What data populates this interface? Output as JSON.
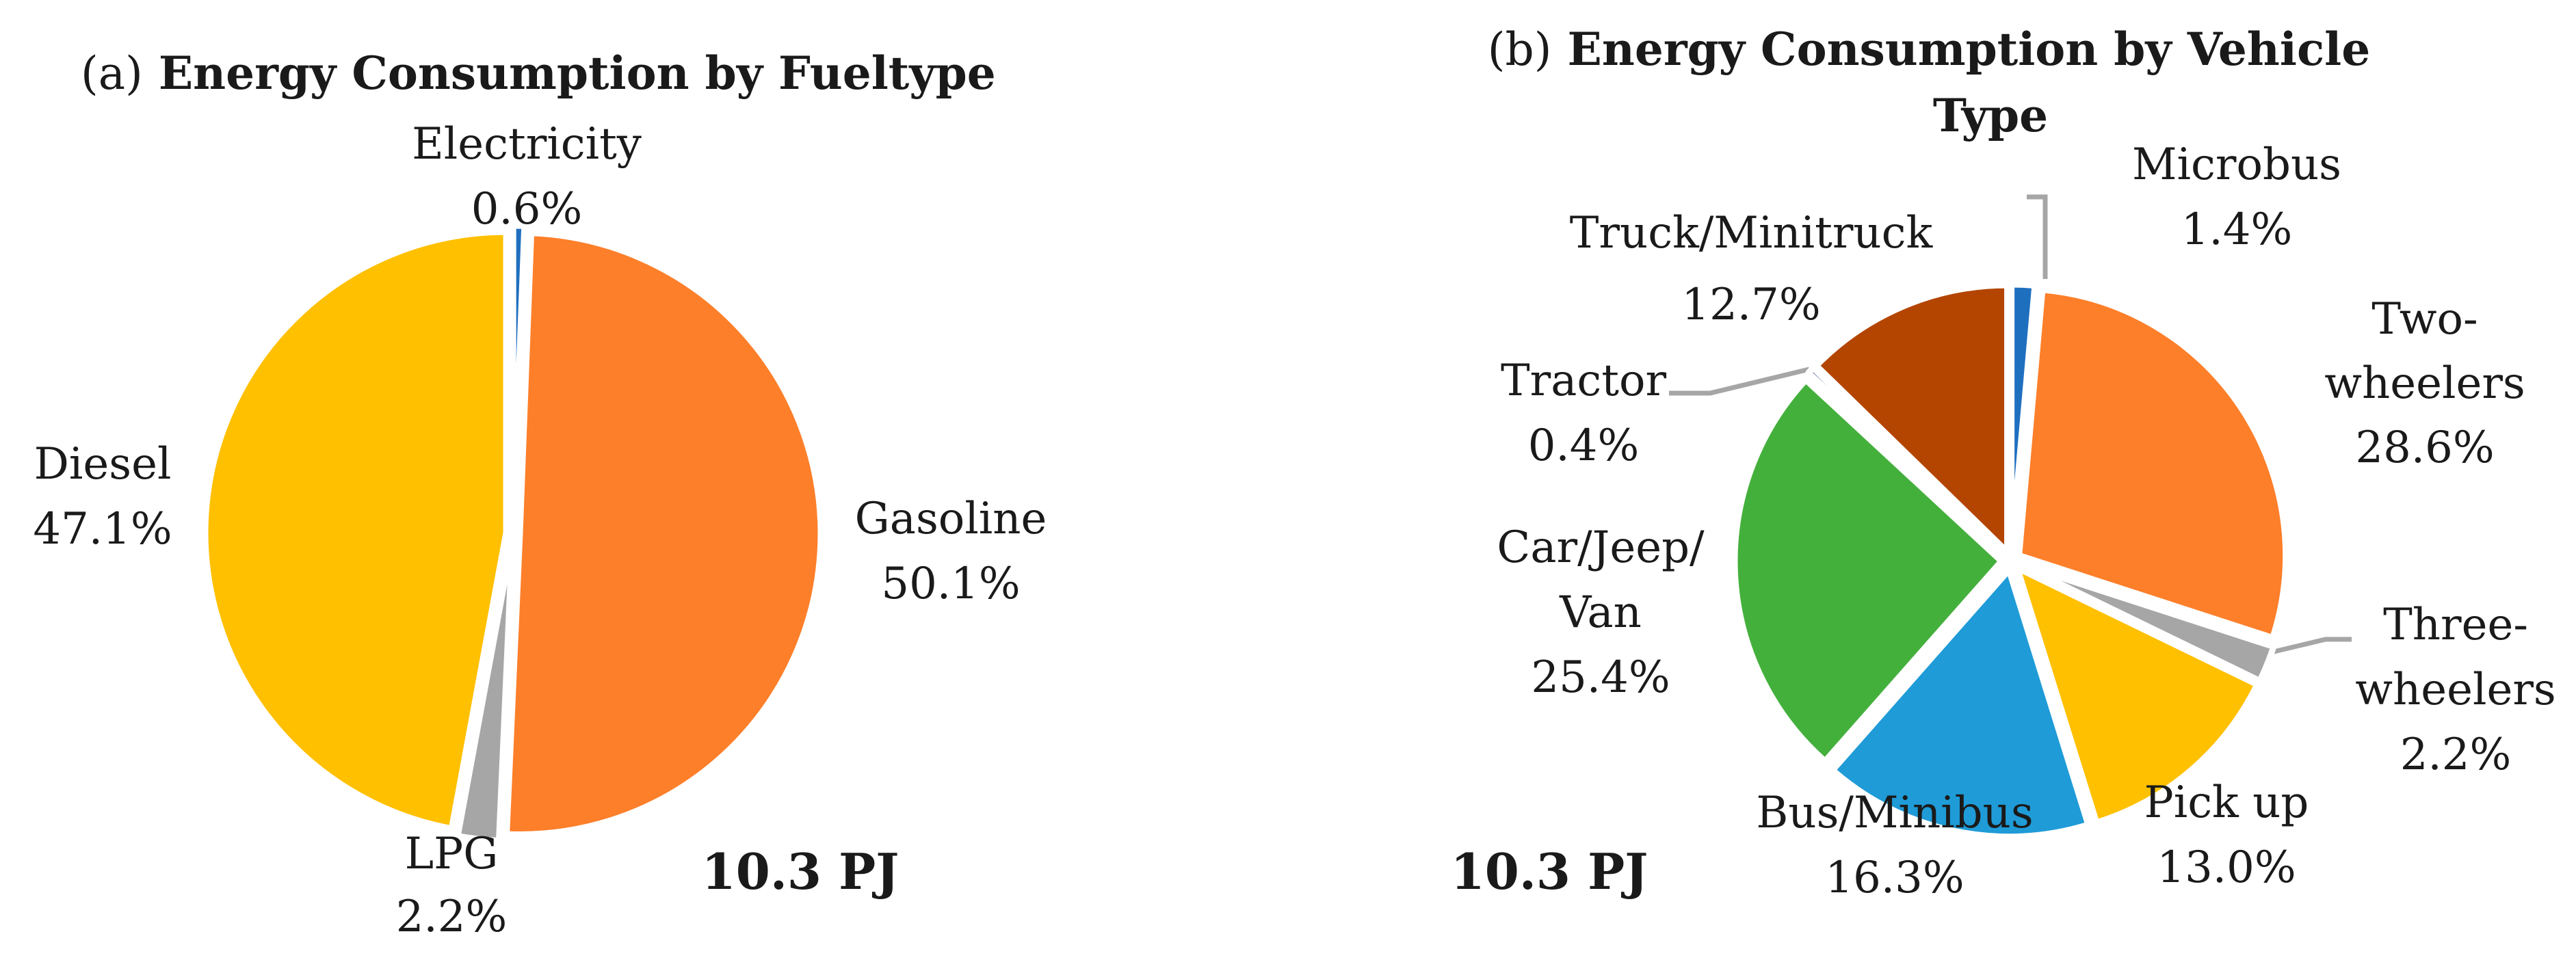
{
  "charts": [
    {
      "id": "a",
      "type": "pie",
      "title_prefix": "(a)",
      "title": "Energy Consumption by Fueltype",
      "total_label": "10.3 PJ",
      "slices": [
        {
          "name": "Electricity",
          "value": 0.6,
          "label": "0.6%",
          "color": "#1f6fbf"
        },
        {
          "name": "Gasoline",
          "value": 50.1,
          "label": "50.1%",
          "color": "#fd7f2a"
        },
        {
          "name": "LPG",
          "value": 2.2,
          "label": "2.2%",
          "color": "#a6a6a6"
        },
        {
          "name": "Diesel",
          "value": 47.1,
          "label": "47.1%",
          "color": "#ffc000"
        }
      ]
    },
    {
      "id": "b",
      "type": "pie",
      "title_prefix": "(b)",
      "title_line1": "Energy Consumption by Vehicle",
      "title_line2": "Type",
      "total_label": "10.3 PJ",
      "slices": [
        {
          "name": "Microbus",
          "value": 1.4,
          "label": "1.4%",
          "color": "#1f6fbf"
        },
        {
          "name_lines": [
            "Two-",
            "wheelers"
          ],
          "value": 28.6,
          "label": "28.6%",
          "color": "#fd7f2a"
        },
        {
          "name_lines": [
            "Three-",
            "wheelers"
          ],
          "value": 2.2,
          "label": "2.2%",
          "color": "#a6a6a6"
        },
        {
          "name": "Pick up",
          "value": 13.0,
          "label": "13.0%",
          "color": "#ffc000"
        },
        {
          "name": "Bus/Minibus",
          "value": 16.3,
          "label": "16.3%",
          "color": "#1f9bd7"
        },
        {
          "name_lines": [
            "Car/Jeep/",
            "Van"
          ],
          "value": 25.4,
          "label": "25.4%",
          "color": "#44b03c"
        },
        {
          "name": "Tractor",
          "value": 0.4,
          "label": "0.4%",
          "color": "#2a3c78"
        },
        {
          "name": "Truck/Minitruck",
          "value": 12.7,
          "label": "12.7%",
          "color": "#b34500"
        }
      ]
    }
  ]
}
